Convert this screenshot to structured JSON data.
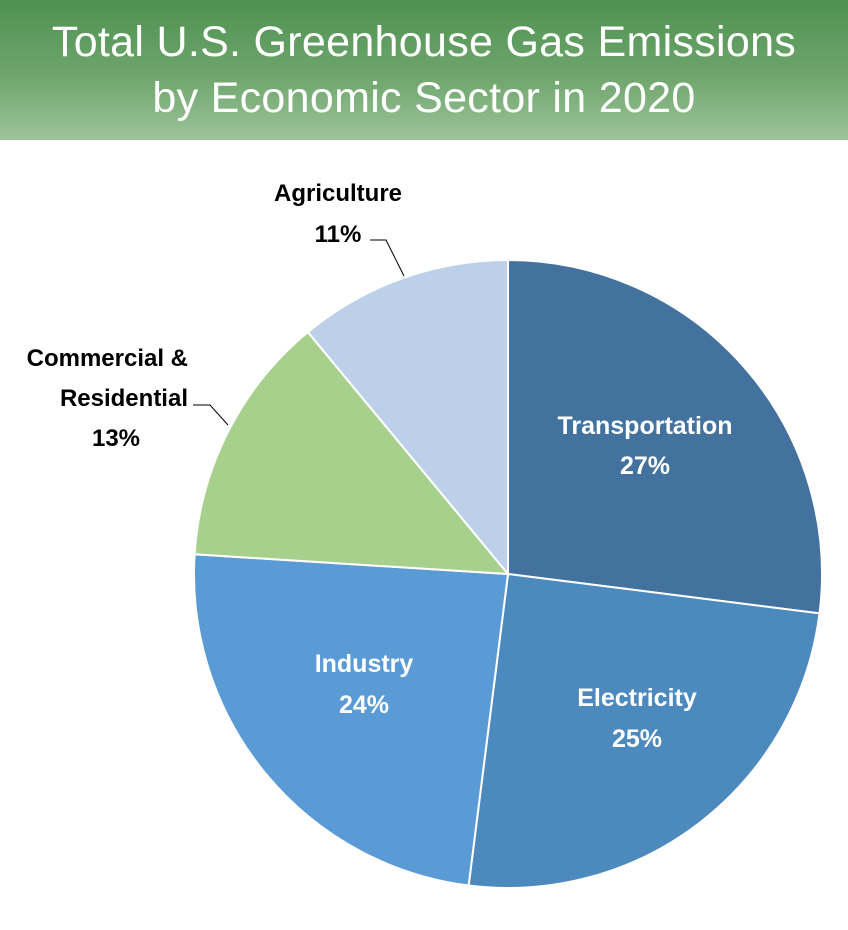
{
  "header": {
    "title_line1": "Total U.S. Greenhouse Gas Emissions",
    "title_line2": "by Economic Sector in 2020"
  },
  "chart_data": {
    "type": "pie",
    "title": "Total U.S. Greenhouse Gas Emissions by Economic Sector in 2020",
    "start_angle_deg": 0,
    "direction": "clockwise",
    "slices": [
      {
        "label": "Transportation",
        "value": 27,
        "value_label": "27%",
        "color": "#43729f",
        "label_position": "inside"
      },
      {
        "label": "Electricity",
        "value": 25,
        "value_label": "25%",
        "color": "#4c89bd",
        "label_position": "inside"
      },
      {
        "label": "Industry",
        "value": 24,
        "value_label": "24%",
        "color": "#5b9bd5",
        "label_position": "inside"
      },
      {
        "label": "Commercial & Residential",
        "value": 13,
        "value_label": "13%",
        "color": "#a8d08d",
        "label_position": "outside"
      },
      {
        "label": "Agriculture",
        "value": 11,
        "value_label": "11%",
        "color": "#bdd0ea",
        "label_position": "outside"
      }
    ],
    "legend": "none"
  }
}
